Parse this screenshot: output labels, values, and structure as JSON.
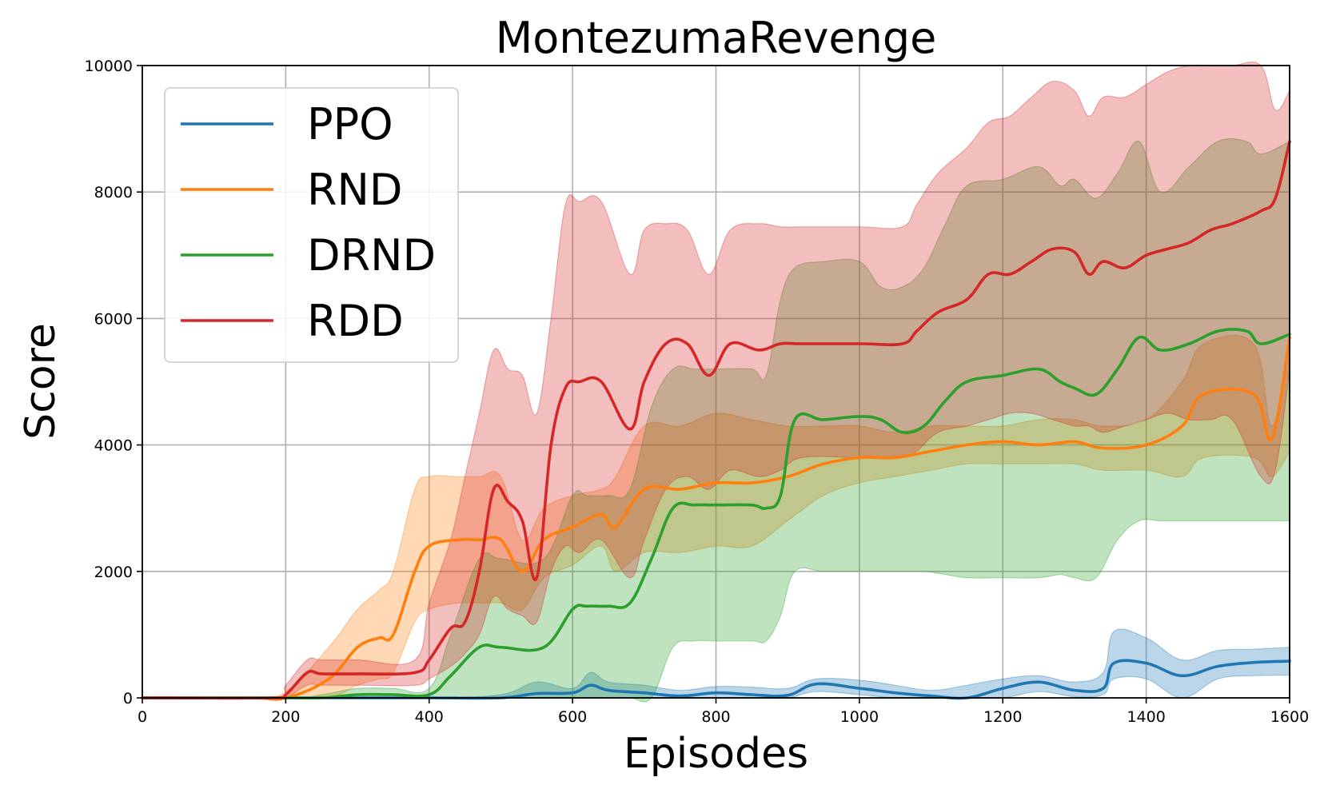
{
  "chart_data": {
    "type": "line",
    "title": "MontezumaRevenge",
    "xlabel": "Episodes",
    "ylabel": "Score",
    "xlim": [
      0,
      1600
    ],
    "ylim": [
      0,
      10000
    ],
    "xticks": [
      "0",
      "200",
      "400",
      "600",
      "800",
      "1000",
      "1200",
      "1400",
      "1600"
    ],
    "yticks": [
      "0",
      "2000",
      "4000",
      "6000",
      "8000",
      "10000"
    ],
    "grid": true,
    "legend_position": "top-left",
    "series": [
      {
        "name": "PPO",
        "color": "#1f77b4",
        "x": [
          0,
          100,
          200,
          300,
          400,
          500,
          550,
          600,
          625,
          650,
          700,
          750,
          800,
          850,
          900,
          940,
          1000,
          1050,
          1100,
          1150,
          1200,
          1250,
          1300,
          1340,
          1355,
          1400,
          1450,
          1500,
          1550,
          1600
        ],
        "y": [
          0,
          0,
          0,
          0,
          0,
          0,
          70,
          80,
          200,
          120,
          80,
          30,
          80,
          50,
          40,
          220,
          150,
          80,
          30,
          0,
          150,
          250,
          120,
          150,
          550,
          550,
          350,
          500,
          560,
          580
        ],
        "upper": [
          0,
          0,
          0,
          0,
          0,
          50,
          250,
          150,
          400,
          250,
          200,
          120,
          180,
          170,
          150,
          300,
          280,
          200,
          120,
          200,
          300,
          350,
          250,
          400,
          1050,
          950,
          600,
          750,
          770,
          800
        ],
        "lower": [
          0,
          0,
          0,
          0,
          0,
          0,
          0,
          0,
          0,
          0,
          0,
          0,
          0,
          0,
          0,
          100,
          50,
          0,
          0,
          0,
          0,
          100,
          20,
          50,
          300,
          300,
          0,
          300,
          350,
          360
        ]
      },
      {
        "name": "RND",
        "color": "#ff7f0e",
        "x": [
          0,
          150,
          200,
          260,
          300,
          330,
          350,
          380,
          400,
          440,
          470,
          500,
          530,
          560,
          600,
          640,
          660,
          700,
          750,
          800,
          850,
          900,
          950,
          1000,
          1050,
          1100,
          1150,
          1200,
          1250,
          1300,
          1340,
          1400,
          1450,
          1480,
          1550,
          1575,
          1600
        ],
        "y": [
          0,
          0,
          0,
          300,
          800,
          950,
          1000,
          2000,
          2400,
          2500,
          2500,
          2500,
          2000,
          2500,
          2700,
          2900,
          2700,
          3300,
          3300,
          3400,
          3400,
          3500,
          3700,
          3800,
          3800,
          3900,
          4000,
          4050,
          4000,
          4050,
          3950,
          4000,
          4300,
          4800,
          4800,
          4100,
          5700
        ],
        "upper": [
          0,
          0,
          100,
          800,
          1400,
          1700,
          2000,
          3300,
          3500,
          3500,
          3500,
          3500,
          2500,
          3000,
          3200,
          3300,
          3500,
          4300,
          4300,
          4500,
          4400,
          4300,
          4300,
          4300,
          4200,
          4300,
          4300,
          4300,
          4400,
          4400,
          4300,
          4400,
          5000,
          5600,
          5600,
          4300,
          5600
        ],
        "lower": [
          0,
          0,
          0,
          0,
          200,
          300,
          400,
          1200,
          1400,
          1500,
          1500,
          1500,
          1400,
          1900,
          2100,
          2400,
          2000,
          2300,
          2300,
          2400,
          2400,
          2800,
          3200,
          3400,
          3500,
          3600,
          3700,
          3700,
          3700,
          3700,
          3600,
          3600,
          3500,
          3800,
          3800,
          3500,
          3900
        ]
      },
      {
        "name": "DRND",
        "color": "#2ca02c",
        "x": [
          0,
          200,
          250,
          300,
          350,
          400,
          430,
          470,
          500,
          560,
          600,
          620,
          650,
          680,
          710,
          740,
          770,
          800,
          850,
          870,
          890,
          910,
          950,
          1000,
          1030,
          1060,
          1090,
          1120,
          1150,
          1200,
          1250,
          1280,
          1300,
          1330,
          1360,
          1390,
          1420,
          1460,
          1500,
          1540,
          1560,
          1600
        ],
        "y": [
          0,
          0,
          0,
          50,
          50,
          50,
          350,
          800,
          800,
          800,
          1400,
          1450,
          1450,
          1500,
          2200,
          3000,
          3050,
          3050,
          3050,
          3000,
          3200,
          4400,
          4400,
          4450,
          4400,
          4200,
          4300,
          4700,
          5000,
          5100,
          5200,
          5000,
          4900,
          4800,
          5200,
          5700,
          5500,
          5600,
          5800,
          5800,
          5600,
          5750
        ],
        "upper": [
          0,
          0,
          50,
          150,
          150,
          150,
          1000,
          2200,
          2200,
          2200,
          3200,
          3200,
          3200,
          3300,
          4600,
          5200,
          5200,
          5200,
          5200,
          5100,
          6300,
          6800,
          6900,
          6900,
          6500,
          6500,
          6800,
          7500,
          8100,
          8200,
          8400,
          8100,
          8200,
          7900,
          8300,
          8800,
          8000,
          8400,
          8800,
          8800,
          8600,
          8800
        ],
        "lower": [
          0,
          0,
          0,
          0,
          0,
          0,
          0,
          0,
          0,
          0,
          0,
          0,
          0,
          0,
          0,
          800,
          900,
          900,
          900,
          900,
          1300,
          2000,
          2000,
          2000,
          2000,
          2000,
          2000,
          1950,
          1900,
          1900,
          1900,
          1950,
          1900,
          1900,
          2500,
          2800,
          2800,
          2800,
          2800,
          2800,
          2800,
          2800
        ]
      },
      {
        "name": "RDD",
        "color": "#d62728",
        "x": [
          0,
          180,
          200,
          230,
          250,
          300,
          380,
          400,
          430,
          450,
          470,
          490,
          510,
          530,
          550,
          570,
          590,
          610,
          640,
          680,
          700,
          730,
          760,
          790,
          820,
          860,
          890,
          920,
          1000,
          1060,
          1080,
          1110,
          1150,
          1180,
          1210,
          1240,
          1270,
          1300,
          1320,
          1340,
          1370,
          1400,
          1430,
          1460,
          1490,
          1520,
          1560,
          1580,
          1600
        ],
        "y": [
          0,
          0,
          50,
          400,
          380,
          380,
          400,
          600,
          1100,
          1200,
          2000,
          3300,
          3100,
          2800,
          1900,
          4000,
          4900,
          5000,
          5000,
          4250,
          5000,
          5600,
          5600,
          5100,
          5600,
          5500,
          5600,
          5600,
          5600,
          5600,
          5800,
          6100,
          6300,
          6700,
          6700,
          6900,
          7100,
          7050,
          6700,
          6900,
          6800,
          7000,
          7100,
          7200,
          7400,
          7500,
          7700,
          7900,
          8800
        ],
        "upper": [
          0,
          0,
          200,
          600,
          600,
          600,
          600,
          1500,
          2500,
          3500,
          4500,
          5500,
          5200,
          5100,
          4500,
          6000,
          7800,
          7850,
          7850,
          6700,
          7400,
          7500,
          7400,
          6700,
          7400,
          7500,
          7450,
          7450,
          7450,
          7450,
          7800,
          8300,
          8700,
          9100,
          9200,
          9500,
          9750,
          9600,
          9200,
          9500,
          9500,
          9700,
          9900,
          10000,
          10000,
          10000,
          10000,
          9300,
          9600
        ],
        "lower": [
          0,
          0,
          0,
          200,
          200,
          200,
          200,
          300,
          500,
          700,
          1000,
          1600,
          1400,
          1300,
          1200,
          2000,
          2400,
          2300,
          2500,
          1900,
          2500,
          3300,
          3500,
          3300,
          3600,
          3500,
          3600,
          3800,
          3800,
          3800,
          3900,
          4200,
          4300,
          4400,
          4500,
          4500,
          4400,
          4300,
          4300,
          4200,
          4300,
          4400,
          4500,
          4400,
          4400,
          4400,
          3500,
          3600,
          5200
        ]
      }
    ]
  }
}
